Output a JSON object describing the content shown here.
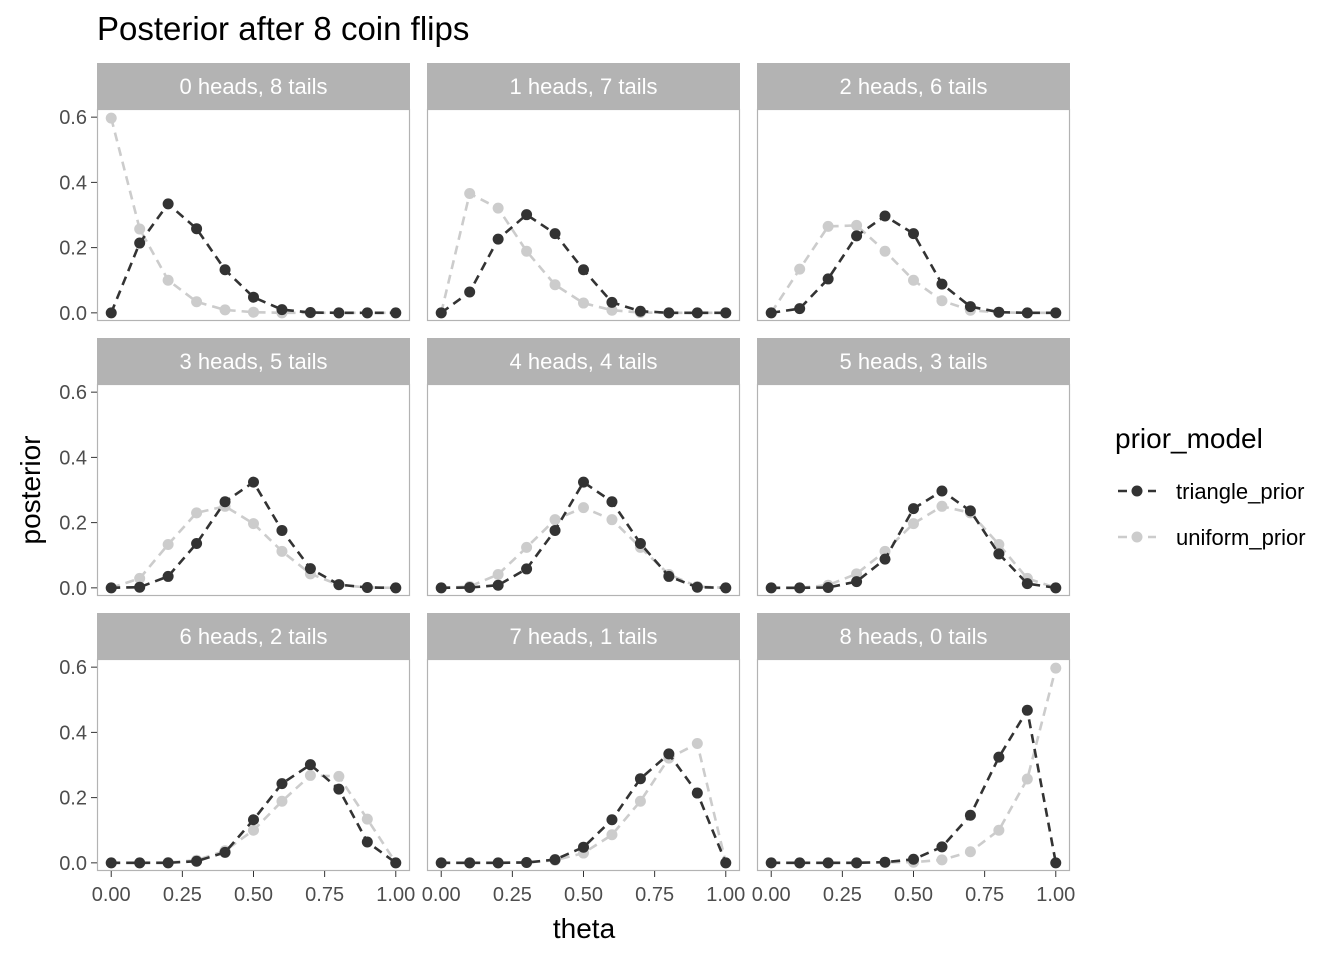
{
  "chart_data": {
    "type": "line",
    "title": "Posterior after 8 coin flips",
    "xlabel": "theta",
    "ylabel": "posterior",
    "x": [
      0,
      0.1,
      0.2,
      0.3,
      0.4,
      0.5,
      0.6,
      0.7,
      0.8,
      0.9,
      1.0
    ],
    "xticks": [
      0,
      0.25,
      0.5,
      0.75,
      1.0
    ],
    "xtick_labels": [
      "0.00",
      "0.25",
      "0.50",
      "0.75",
      "1.00"
    ],
    "yticks": [
      0,
      0.2,
      0.4,
      0.6
    ],
    "ytick_labels": [
      "0.0",
      "0.2",
      "0.4",
      "0.6"
    ],
    "xlim": [
      -0.05,
      1.05
    ],
    "ylim": [
      -0.025,
      0.625
    ],
    "grid": false,
    "legend": {
      "title": "prior_model",
      "placement": "right",
      "entries": [
        "triangle_prior",
        "uniform_prior"
      ]
    },
    "series_styles": {
      "triangle_prior": {
        "color": "#333333",
        "dash": "dashed"
      },
      "uniform_prior": {
        "color": "#cccccc",
        "dash": "dashed"
      }
    },
    "colors": {
      "strip_fill": "#b3b3b3",
      "strip_text": "#ffffff",
      "panel_border": "#b3b3b3",
      "axis_text": "#4d4d4d"
    },
    "facets": [
      {
        "label": "0 heads, 8 tails",
        "series": [
          {
            "name": "triangle_prior",
            "values": [
              0,
              0.214,
              0.334,
              0.258,
              0.132,
              0.048,
              0.01,
              0.001,
              0,
              0,
              0
            ]
          },
          {
            "name": "uniform_prior",
            "values": [
              0.597,
              0.257,
              0.1,
              0.034,
              0.009,
              0.002,
              0,
              0,
              0,
              0,
              0
            ]
          }
        ]
      },
      {
        "label": "1 heads, 7 tails",
        "series": [
          {
            "name": "triangle_prior",
            "values": [
              0,
              0.064,
              0.226,
              0.301,
              0.243,
              0.132,
              0.032,
              0.005,
              0,
              0,
              0
            ]
          },
          {
            "name": "uniform_prior",
            "values": [
              0,
              0.366,
              0.321,
              0.189,
              0.086,
              0.03,
              0.008,
              0.001,
              0,
              0,
              0
            ]
          }
        ]
      },
      {
        "label": "2 heads, 6 tails",
        "series": [
          {
            "name": "triangle_prior",
            "values": [
              0,
              0.013,
              0.104,
              0.236,
              0.297,
              0.243,
              0.088,
              0.019,
              0.002,
              0,
              0
            ]
          },
          {
            "name": "uniform_prior",
            "values": [
              0,
              0.134,
              0.265,
              0.268,
              0.189,
              0.1,
              0.037,
              0.008,
              0.001,
              0,
              0
            ]
          }
        ]
      },
      {
        "label": "3 heads, 5 tails",
        "series": [
          {
            "name": "triangle_prior",
            "values": [
              0,
              0.002,
              0.035,
              0.136,
              0.264,
              0.324,
              0.176,
              0.059,
              0.01,
              0.001,
              0
            ]
          },
          {
            "name": "uniform_prior",
            "values": [
              0,
              0.029,
              0.133,
              0.23,
              0.25,
              0.197,
              0.112,
              0.043,
              0.009,
              0.001,
              0
            ]
          }
        ]
      },
      {
        "label": "4 heads, 4 tails",
        "series": [
          {
            "name": "triangle_prior",
            "values": [
              0,
              0.001,
              0.008,
              0.058,
              0.176,
              0.324,
              0.264,
              0.136,
              0.035,
              0.002,
              0
            ]
          },
          {
            "name": "uniform_prior",
            "values": [
              0,
              0.004,
              0.041,
              0.124,
              0.209,
              0.246,
              0.209,
              0.124,
              0.041,
              0.004,
              0
            ]
          }
        ]
      },
      {
        "label": "5 heads, 3 tails",
        "series": [
          {
            "name": "triangle_prior",
            "values": [
              0,
              0,
              0.001,
              0.019,
              0.088,
              0.243,
              0.297,
              0.236,
              0.104,
              0.013,
              0
            ]
          },
          {
            "name": "uniform_prior",
            "values": [
              0,
              0,
              0.008,
              0.043,
              0.112,
              0.197,
              0.25,
              0.23,
              0.133,
              0.029,
              0
            ]
          }
        ]
      },
      {
        "label": "6 heads, 2 tails",
        "series": [
          {
            "name": "triangle_prior",
            "values": [
              0,
              0,
              0,
              0.005,
              0.032,
              0.132,
              0.243,
              0.301,
              0.226,
              0.064,
              0
            ]
          },
          {
            "name": "uniform_prior",
            "values": [
              0,
              0,
              0.001,
              0.008,
              0.037,
              0.1,
              0.189,
              0.268,
              0.265,
              0.134,
              0
            ]
          }
        ]
      },
      {
        "label": "7 heads, 1 tails",
        "series": [
          {
            "name": "triangle_prior",
            "values": [
              0,
              0,
              0,
              0.001,
              0.01,
              0.048,
              0.132,
              0.258,
              0.334,
              0.214,
              0
            ]
          },
          {
            "name": "uniform_prior",
            "values": [
              0,
              0,
              0,
              0.001,
              0.008,
              0.03,
              0.086,
              0.189,
              0.321,
              0.366,
              0
            ]
          }
        ]
      },
      {
        "label": "8 heads, 0 tails",
        "series": [
          {
            "name": "triangle_prior",
            "values": [
              0,
              0,
              0,
              0,
              0.002,
              0.011,
              0.049,
              0.146,
              0.324,
              0.468,
              0
            ]
          },
          {
            "name": "uniform_prior",
            "values": [
              0,
              0,
              0,
              0,
              0.002,
              0.002,
              0.009,
              0.034,
              0.1,
              0.257,
              0.597
            ]
          }
        ]
      }
    ]
  }
}
